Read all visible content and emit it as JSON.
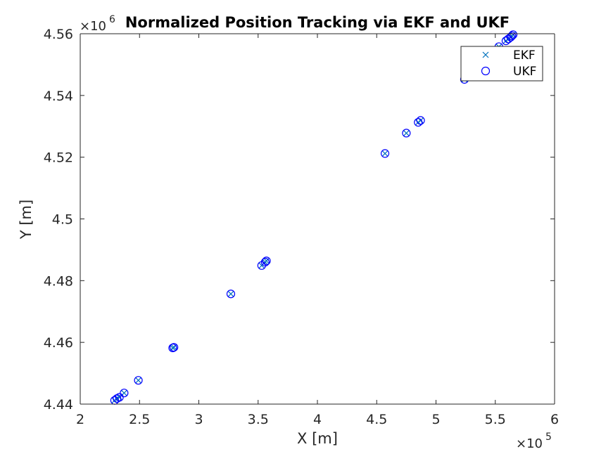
{
  "chart_data": {
    "type": "scatter",
    "title": "Normalized Position Tracking via EKF and UKF",
    "xlabel": "X [m]",
    "ylabel": "Y [m]",
    "x_multiplier": "×10",
    "x_multiplier_exponent": "5",
    "y_multiplier": "×10",
    "y_multiplier_exponent": "6",
    "xlim": [
      2,
      6
    ],
    "ylim": [
      4.44,
      4.56
    ],
    "xticks": [
      2,
      2.5,
      3,
      3.5,
      4,
      4.5,
      5,
      5.5,
      6
    ],
    "xtick_labels": [
      "2",
      "2.5",
      "3",
      "3.5",
      "4",
      "4.5",
      "5",
      "5.5",
      "6"
    ],
    "yticks": [
      4.44,
      4.46,
      4.48,
      4.5,
      4.52,
      4.54,
      4.56
    ],
    "ytick_labels": [
      "4.44",
      "4.46",
      "4.48",
      "4.5",
      "4.52",
      "4.54",
      "4.56"
    ],
    "grid": false,
    "legend_location": "top-right",
    "series": [
      {
        "name": "EKF",
        "marker": "x",
        "color": "#0072BD",
        "points": [
          [
            2.29,
            4.4412
          ],
          [
            2.31,
            4.4418
          ],
          [
            2.33,
            4.4422
          ],
          [
            2.37,
            4.4436
          ],
          [
            2.49,
            4.4477
          ],
          [
            2.78,
            4.4582
          ],
          [
            2.79,
            4.4584
          ],
          [
            3.27,
            4.4757
          ],
          [
            3.53,
            4.4849
          ],
          [
            3.56,
            4.486
          ],
          [
            3.57,
            4.4864
          ],
          [
            4.57,
            4.5212
          ],
          [
            4.75,
            4.5278
          ],
          [
            4.85,
            4.5313
          ],
          [
            4.87,
            4.5319
          ],
          [
            5.24,
            4.5452
          ],
          [
            5.53,
            4.5558
          ],
          [
            5.59,
            4.5577
          ],
          [
            5.61,
            4.5583
          ],
          [
            5.63,
            4.5589
          ],
          [
            5.64,
            4.5593
          ],
          [
            5.65,
            4.5597
          ]
        ]
      },
      {
        "name": "UKF",
        "marker": "o",
        "color": "#0000FF",
        "points": [
          [
            2.29,
            4.4412
          ],
          [
            2.31,
            4.4418
          ],
          [
            2.33,
            4.4422
          ],
          [
            2.37,
            4.4436
          ],
          [
            2.49,
            4.4477
          ],
          [
            2.78,
            4.4582
          ],
          [
            2.79,
            4.4584
          ],
          [
            3.27,
            4.4757
          ],
          [
            3.53,
            4.4849
          ],
          [
            3.56,
            4.486
          ],
          [
            3.57,
            4.4864
          ],
          [
            4.57,
            4.5212
          ],
          [
            4.75,
            4.5278
          ],
          [
            4.85,
            4.5313
          ],
          [
            4.87,
            4.5319
          ],
          [
            5.24,
            4.5452
          ],
          [
            5.53,
            4.5558
          ],
          [
            5.59,
            4.5577
          ],
          [
            5.61,
            4.5583
          ],
          [
            5.63,
            4.5589
          ],
          [
            5.64,
            4.5593
          ],
          [
            5.65,
            4.5597
          ]
        ]
      }
    ]
  }
}
